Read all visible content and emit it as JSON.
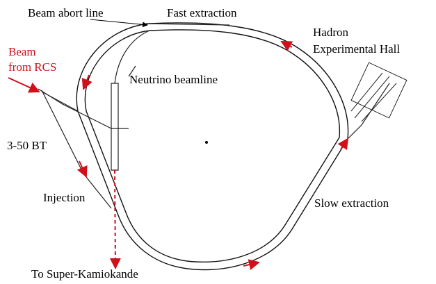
{
  "labels": {
    "beam_abort_line": "Beam abort line",
    "fast_extraction": "Fast extraction",
    "hadron_line1": "Hadron",
    "hadron_line2": "Experimental Hall",
    "beam_line1": "Beam",
    "beam_line2": "from RCS",
    "neutrino_beamline": "Neutrino beamline",
    "bt": "3-50 BT",
    "injection": "Injection",
    "slow_extraction": "Slow extraction",
    "super_kamiokande": "To Super-Kamiokande"
  }
}
